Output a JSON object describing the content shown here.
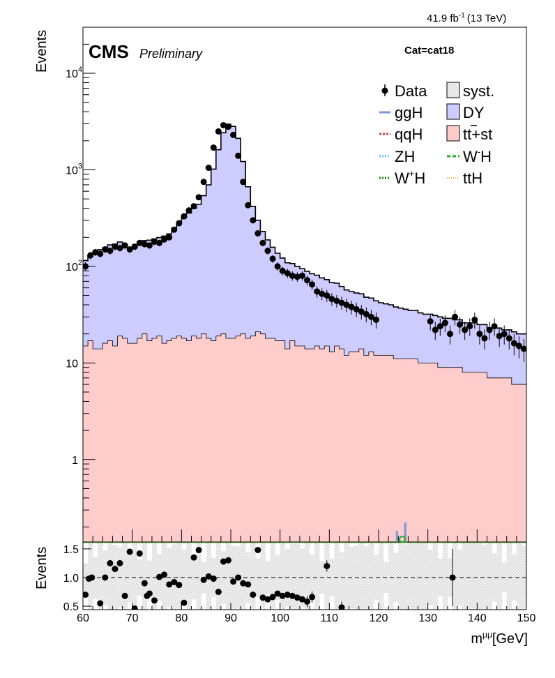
{
  "header": {
    "lumi": "41.9 fb",
    "lumi_sup": "-1",
    "energy": "(13 TeV)",
    "experiment": "CMS",
    "status": "Preliminary",
    "category": "Cat=cat18"
  },
  "legend": {
    "data": "Data",
    "syst": "syst.",
    "ggH": "ggH",
    "DY": "DY",
    "qqH": "qqH",
    "tt_base": "tt",
    "tt_suffix": "+st",
    "ZH": "ZH",
    "WmH_base": "W",
    "WmH_sup": "-",
    "WmH_suffix": "H",
    "WpH_base": "W",
    "WpH_sup": "+",
    "WpH_suffix": "H",
    "ttH": "ttH"
  },
  "colors": {
    "dy": "#ccccff",
    "tt": "#ffcccc",
    "syst": "#dddddd",
    "ggH": "#7b95d6",
    "qqH": "#cc4444",
    "ZH": "#55ccee",
    "WmH": "#22aa22",
    "WpH": "#118811",
    "ttH": "#eebb33"
  },
  "chart_data": {
    "type": "bar",
    "stacked": true,
    "log_y": true,
    "xlim": [
      60,
      150
    ],
    "ylim": [
      0.14,
      30000
    ],
    "ylabel": "Events",
    "xlabel": "m",
    "xlabel_sup": "μμ",
    "xlabel_unit": "[GeV]",
    "x_ticks": [
      "60",
      "70",
      "80",
      "90",
      "100",
      "110",
      "120",
      "130",
      "140",
      "150"
    ],
    "y_tick_labels": [
      "1",
      "10",
      "10",
      "10",
      "10"
    ],
    "y_tick_sups": [
      "",
      "",
      "2",
      "3",
      "4"
    ],
    "bin_edges_start": 60,
    "bin_width": 1,
    "tt_bkg": [
      15,
      17,
      14,
      14,
      16,
      17,
      15,
      19,
      18,
      16,
      16,
      18,
      20,
      17,
      18,
      19,
      16,
      17,
      18,
      19,
      18,
      17,
      19,
      18,
      20,
      18,
      17,
      19,
      20,
      18,
      18,
      19,
      20,
      18,
      19,
      21,
      20,
      18,
      18,
      17,
      17,
      14,
      17,
      15,
      15,
      14,
      14,
      15,
      14,
      15,
      13,
      15,
      14,
      12,
      13,
      13,
      14,
      12,
      13,
      12,
      12,
      12,
      12,
      11,
      11,
      11,
      11,
      11,
      10,
      10,
      10,
      10,
      9,
      9,
      9,
      9,
      9,
      8,
      8,
      8,
      8,
      8,
      7,
      7,
      7,
      7,
      7,
      6,
      6,
      6
    ],
    "dy_bkg": [
      100,
      110,
      125,
      135,
      140,
      150,
      155,
      160,
      150,
      140,
      150,
      160,
      165,
      170,
      175,
      180,
      190,
      200,
      230,
      260,
      300,
      340,
      380,
      420,
      520,
      680,
      1000,
      1600,
      2400,
      2950,
      2800,
      2100,
      1200,
      650,
      400,
      280,
      210,
      170,
      140,
      120,
      105,
      95,
      90,
      85,
      80,
      75,
      70,
      66,
      62,
      58,
      55,
      52,
      48,
      45,
      42,
      40,
      38,
      36,
      34,
      32,
      30,
      29,
      28,
      27,
      26,
      25,
      24,
      24,
      23,
      22,
      22,
      21,
      21,
      20,
      20,
      19,
      19,
      18,
      18,
      18,
      17,
      17,
      16,
      16,
      16,
      15,
      15,
      15,
      14,
      14
    ],
    "data_x": [
      60.5,
      61.5,
      62.5,
      63.5,
      64.5,
      65.5,
      66.5,
      67.5,
      68.5,
      69.5,
      70.5,
      71.5,
      72.5,
      73.5,
      74.5,
      75.5,
      76.5,
      77.5,
      78.5,
      79.5,
      80.5,
      81.5,
      82.5,
      83.5,
      84.5,
      85.5,
      86.5,
      87.5,
      88.5,
      89.5,
      90.5,
      91.5,
      92.5,
      93.5,
      94.5,
      95.5,
      96.5,
      97.5,
      98.5,
      99.5,
      100.5,
      101.5,
      102.5,
      103.5,
      104.5,
      105.5,
      106.5,
      107.5,
      108.5,
      109.5,
      110.5,
      111.5,
      112.5,
      113.5,
      114.5,
      115.5,
      116.5,
      117.5,
      118.5,
      119.5,
      130.5,
      131.5,
      132.5,
      133.5,
      134.5,
      135.5,
      136.5,
      137.5,
      138.5,
      139.5,
      140.5,
      141.5,
      142.5,
      143.5,
      144.5,
      145.5,
      146.5,
      147.5,
      148.5,
      149.5
    ],
    "data_y": [
      100,
      130,
      140,
      135,
      150,
      145,
      160,
      155,
      165,
      150,
      160,
      175,
      170,
      165,
      180,
      175,
      190,
      200,
      240,
      280,
      330,
      380,
      420,
      520,
      750,
      1050,
      1700,
      2500,
      2900,
      2800,
      2300,
      1400,
      750,
      430,
      300,
      220,
      175,
      145,
      120,
      100,
      90,
      85,
      80,
      78,
      80,
      72,
      65,
      55,
      52,
      50,
      46,
      44,
      42,
      40,
      38,
      36,
      34,
      32,
      30,
      28,
      27,
      22,
      24,
      26,
      20,
      30,
      25,
      22,
      24,
      28,
      20,
      18,
      22,
      24,
      19,
      20,
      18,
      16,
      15,
      14
    ],
    "ratio": {
      "ylim": [
        0.44,
        1.62
      ],
      "ylabel": "Events",
      "y_ticks": [
        "1.5",
        "1.0",
        "0.5"
      ],
      "x": [
        60.5,
        61.2,
        61.8,
        63.5,
        64.5,
        65.5,
        66.5,
        67.5,
        68.5,
        69.5,
        70.5,
        71.5,
        72.5,
        73.0,
        73.5,
        74.5,
        75.5,
        76.5,
        77.5,
        78.5,
        79.5,
        80.5,
        82.5,
        83.5,
        84.5,
        85.5,
        86.5,
        87.5,
        88.5,
        89.5,
        90.5,
        91.5,
        92.5,
        93.5,
        94.5,
        95.5,
        96.5,
        97.5,
        98.5,
        99.5,
        100.5,
        101.5,
        102.5,
        103.5,
        104.5,
        105.5,
        106.5,
        109.5,
        112.5,
        135.0
      ],
      "y": [
        0.7,
        0.98,
        1.0,
        0.55,
        1.0,
        1.25,
        1.15,
        1.25,
        0.68,
        1.45,
        0.46,
        1.42,
        0.9,
        0.68,
        0.72,
        0.6,
        1.01,
        1.05,
        0.88,
        0.92,
        0.87,
        0.56,
        1.35,
        1.48,
        0.96,
        1.02,
        0.98,
        0.75,
        1.28,
        1.3,
        0.93,
        1.0,
        0.9,
        0.88,
        0.7,
        1.48,
        0.65,
        0.62,
        0.66,
        0.72,
        0.68,
        0.7,
        0.68,
        0.65,
        0.62,
        0.58,
        0.66,
        1.2,
        0.48,
        1.0
      ]
    }
  }
}
